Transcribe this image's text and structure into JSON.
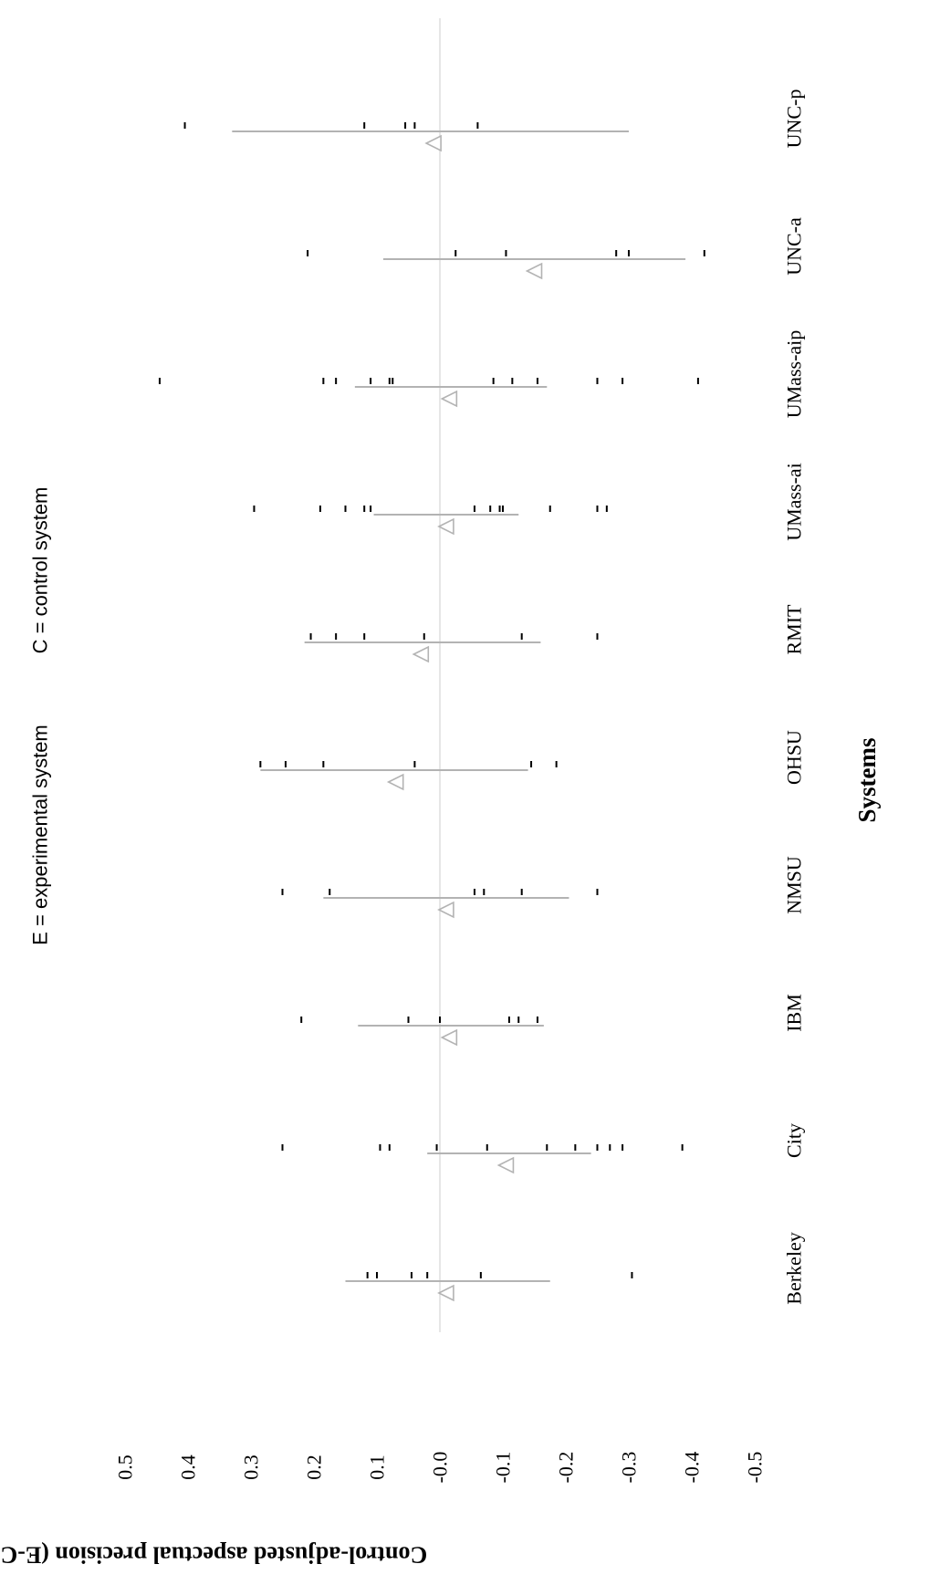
{
  "chart_data": {
    "type": "scatter",
    "note_experimental": "E = experimental system",
    "note_control": "C = control system",
    "xlabel": "Systems",
    "ylabel": "Control-adjusted aspectual precision (E-C)",
    "ylim": [
      -0.5,
      0.5
    ],
    "y_ticks": [
      "0.5",
      "0.4",
      "0.3",
      "0.2",
      "0.1",
      "-0.0",
      "-0.1",
      "-0.2",
      "-0.3",
      "-0.4",
      "-0.5"
    ],
    "y_tick_values": [
      0.5,
      0.4,
      0.3,
      0.2,
      0.1,
      0.0,
      -0.1,
      -0.2,
      -0.3,
      -0.4,
      -0.5
    ],
    "zero_line": 0,
    "orientation": "rotated 90 degrees",
    "categories": [
      "Berkeley",
      "City",
      "IBM",
      "NMSU",
      "OHSU",
      "RMIT",
      "UMass-ai",
      "UMass-aip",
      "UNC-a",
      "UNC-p"
    ],
    "series": [
      {
        "system": "Berkeley",
        "points": [
          0.115,
          0.1,
          0.045,
          0.02,
          -0.065,
          -0.305
        ],
        "mean": -0.01,
        "range": [
          0.15,
          -0.175
        ]
      },
      {
        "system": "City",
        "points": [
          0.25,
          0.095,
          0.08,
          0.005,
          -0.075,
          -0.17,
          -0.215,
          -0.25,
          -0.27,
          -0.29,
          -0.385
        ],
        "mean": -0.105,
        "range": [
          0.02,
          -0.24
        ]
      },
      {
        "system": "IBM",
        "points": [
          0.22,
          0.05,
          0.0,
          -0.11,
          -0.125,
          -0.155
        ],
        "mean": -0.015,
        "range": [
          0.13,
          -0.165
        ]
      },
      {
        "system": "NMSU",
        "points": [
          0.25,
          0.175,
          -0.055,
          -0.07,
          -0.13,
          -0.25
        ],
        "mean": -0.01,
        "range": [
          0.185,
          -0.205
        ]
      },
      {
        "system": "OHSU",
        "points": [
          0.285,
          0.245,
          0.185,
          0.04,
          -0.145,
          -0.185
        ],
        "mean": 0.07,
        "range": [
          0.285,
          -0.14
        ]
      },
      {
        "system": "RMIT",
        "points": [
          0.205,
          0.165,
          0.12,
          0.025,
          -0.13,
          -0.25
        ],
        "mean": 0.03,
        "range": [
          0.215,
          -0.16
        ]
      },
      {
        "system": "UMass-ai",
        "points": [
          0.295,
          0.19,
          0.15,
          0.12,
          0.11,
          -0.055,
          -0.08,
          -0.095,
          -0.1,
          -0.175,
          -0.25,
          -0.265
        ],
        "mean": -0.01,
        "range": [
          0.105,
          -0.125
        ]
      },
      {
        "system": "UMass-aip",
        "points": [
          0.445,
          0.185,
          0.165,
          0.11,
          0.08,
          0.075,
          -0.085,
          -0.115,
          -0.155,
          -0.25,
          -0.29,
          -0.41
        ],
        "mean": -0.015,
        "range": [
          0.135,
          -0.17
        ]
      },
      {
        "system": "UNC-a",
        "points": [
          0.21,
          -0.025,
          -0.105,
          -0.28,
          -0.3,
          -0.42
        ],
        "mean": -0.15,
        "range": [
          0.09,
          -0.39
        ]
      },
      {
        "system": "UNC-p",
        "points": [
          0.405,
          0.12,
          0.055,
          0.04,
          -0.06
        ],
        "mean": 0.01,
        "range": [
          0.33,
          -0.3
        ]
      }
    ],
    "grid": false,
    "legend": "none",
    "colors": {
      "points": "#000000",
      "summary": "#b3b3b3",
      "zero_line": "#e6e6e6"
    }
  }
}
